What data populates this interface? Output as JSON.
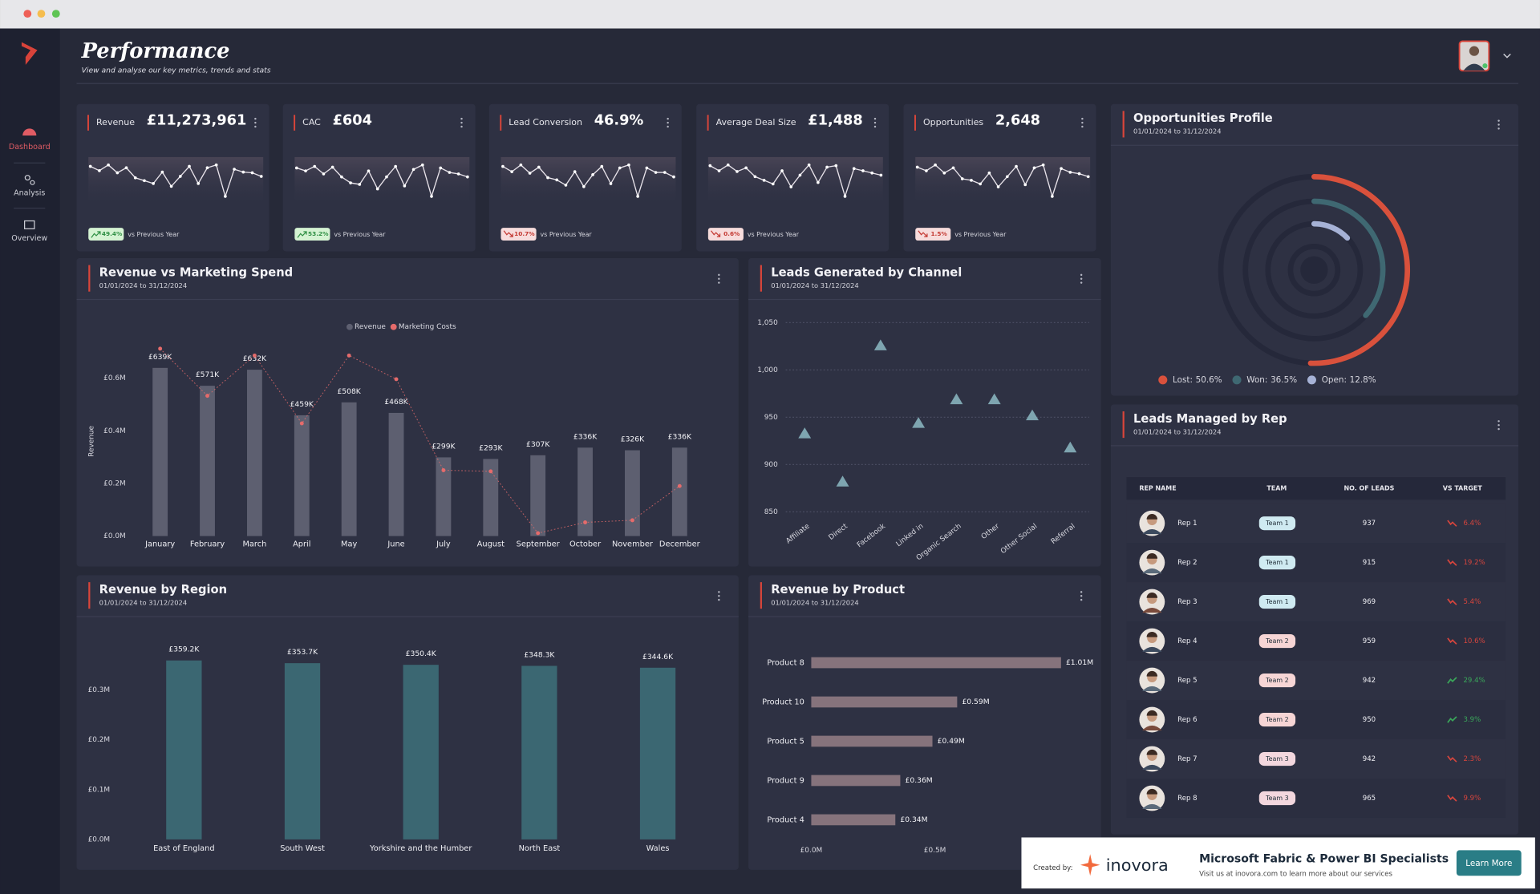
{
  "nav": {
    "items": [
      "Dashboard",
      "Analysis",
      "Overview"
    ]
  },
  "header": {
    "title": "Performance",
    "subtitle": "View and analyse our key metrics, trends and stats"
  },
  "kpis": [
    {
      "label": "Revenue",
      "value": "£11,273,961",
      "change": "49.4%",
      "direction": "up",
      "comparison": "vs Previous Year",
      "trend": [
        64,
        58,
        66,
        55,
        62,
        48,
        44,
        40,
        56,
        36,
        50,
        64,
        40,
        62,
        66,
        22,
        60,
        56,
        55,
        50
      ]
    },
    {
      "label": "CAC",
      "value": "£604",
      "change": "53.2%",
      "direction": "up",
      "comparison": "vs Previous Year",
      "trend": [
        62,
        58,
        64,
        54,
        63,
        50,
        42,
        40,
        58,
        34,
        50,
        64,
        38,
        60,
        66,
        24,
        62,
        56,
        54,
        50
      ]
    },
    {
      "label": "Lead Conversion",
      "value": "46.9%",
      "change": "10.7%",
      "direction": "down",
      "comparison": "vs Previous Year",
      "trend": [
        63,
        56,
        65,
        54,
        62,
        48,
        45,
        38,
        56,
        36,
        52,
        63,
        40,
        61,
        65,
        23,
        61,
        55,
        55,
        49
      ]
    },
    {
      "label": "Average Deal Size",
      "value": "£1,488",
      "change": "0.6%",
      "direction": "down",
      "comparison": "vs Previous Year",
      "trend": [
        64,
        57,
        65,
        56,
        61,
        49,
        44,
        39,
        57,
        35,
        51,
        65,
        41,
        62,
        64,
        22,
        60,
        57,
        54,
        51
      ]
    },
    {
      "label": "Opportunities",
      "value": "2,648",
      "change": "1.5%",
      "direction": "down",
      "comparison": "vs Previous Year",
      "trend": [
        63,
        58,
        66,
        55,
        62,
        47,
        45,
        40,
        55,
        36,
        50,
        64,
        39,
        62,
        66,
        23,
        61,
        56,
        54,
        50
      ]
    }
  ],
  "chart_data": [
    {
      "type": "combo",
      "title": "Revenue vs Marketing Spend",
      "subtitle": "01/01/2024 to 31/12/2024",
      "categories": [
        "January",
        "February",
        "March",
        "April",
        "May",
        "June",
        "July",
        "August",
        "September",
        "October",
        "November",
        "December"
      ],
      "series": [
        {
          "name": "Revenue",
          "type": "bar",
          "color": "#5d5f70",
          "values": [
            639000,
            571000,
            632000,
            459000,
            508000,
            468000,
            299000,
            293000,
            307000,
            336000,
            326000,
            336000
          ],
          "value_labels": [
            "£639K",
            "£571K",
            "£632K",
            "£459K",
            "£508K",
            "£468K",
            "£299K",
            "£293K",
            "£307K",
            "£336K",
            "£326K",
            "£336K"
          ]
        },
        {
          "name": "Marketing Costs",
          "type": "line",
          "color": "#e56b6b",
          "values": [
            712000,
            533000,
            686000,
            428000,
            686000,
            596000,
            250000,
            246000,
            11000,
            52000,
            60000,
            190000
          ]
        }
      ],
      "y_label": "Revenue",
      "ylim": [
        0,
        720000
      ],
      "yticks": [
        {
          "value": 0,
          "label": "£0.0M"
        },
        {
          "value": 200000,
          "label": "£0.2M"
        },
        {
          "value": 400000,
          "label": "£0.4M"
        },
        {
          "value": 600000,
          "label": "£0.6M"
        }
      ],
      "grid": false
    },
    {
      "type": "scatter",
      "title": "Leads Generated by Channel",
      "subtitle": "01/01/2024 to 31/12/2024",
      "categories": [
        "Affiliate",
        "Direct",
        "Facebook",
        "Linked in",
        "Organic Search",
        "Other",
        "Other Social",
        "Referral"
      ],
      "values": [
        933,
        882,
        1026,
        944,
        969,
        969,
        952,
        918
      ],
      "color": "#7ea5b0",
      "ylim": [
        840,
        1060
      ],
      "yticks": [
        850,
        900,
        950,
        {
          "value": 1000,
          "label": "1,000"
        },
        {
          "value": 1050,
          "label": "1,050"
        }
      ],
      "grid": true
    },
    {
      "type": "bar",
      "title": "Revenue by Region",
      "subtitle": "01/01/2024 to 31/12/2024",
      "categories": [
        "East of England",
        "South West",
        "Yorkshire and the Humber",
        "North East",
        "Wales"
      ],
      "values": [
        359200,
        353700,
        350400,
        348300,
        344600
      ],
      "value_labels": [
        "£359.2K",
        "£353.7K",
        "£350.4K",
        "£348.3K",
        "£344.6K"
      ],
      "color": "#3b6772",
      "ylim": [
        0,
        400000
      ],
      "yticks": [
        {
          "value": 0,
          "label": "£0.0M"
        },
        {
          "value": 100000,
          "label": "£0.1M"
        },
        {
          "value": 200000,
          "label": "£0.2M"
        },
        {
          "value": 300000,
          "label": "£0.3M"
        }
      ],
      "grid": false
    },
    {
      "type": "bar",
      "orientation": "horizontal",
      "title": "Revenue by Product",
      "subtitle": "01/01/2024 to 31/12/2024",
      "categories": [
        "Product 8",
        "Product 10",
        "Product 5",
        "Product 9",
        "Product 4"
      ],
      "values": [
        1010000,
        590000,
        490000,
        360000,
        340000
      ],
      "value_labels": [
        "£1.01M",
        "£0.59M",
        "£0.49M",
        "£0.36M",
        "£0.34M"
      ],
      "color": "#86737c",
      "xlim": [
        0,
        1100000
      ],
      "xticks": [
        {
          "value": 0,
          "label": "£0.0M"
        },
        {
          "value": 500000,
          "label": "£0.5M"
        }
      ],
      "grid": false
    },
    {
      "type": "radial",
      "title": "Opportunities Profile",
      "subtitle": "01/01/2024 to 31/12/2024",
      "categories": [
        "Lost:",
        "Won:",
        "Open:"
      ],
      "values": [
        50.6,
        36.5,
        12.8
      ],
      "value_labels": [
        "50.6%",
        "36.5%",
        "12.8%"
      ],
      "colors": [
        "#d9513c",
        "#3f6872",
        "#a6b2d6"
      ]
    }
  ],
  "table": {
    "title": "Leads Managed by Rep",
    "subtitle": "01/01/2024 to 31/12/2024",
    "columns": [
      "REP NAME",
      "TEAM",
      "NO. OF LEADS",
      "VS TARGET"
    ],
    "rows": [
      [
        "Rep 1",
        "Team 1",
        937,
        "6.4%"
      ],
      [
        "Rep 2",
        "Team 1",
        915,
        "19.2%"
      ],
      [
        "Rep 3",
        "Team 1",
        969,
        "5.4%"
      ],
      [
        "Rep 4",
        "Team 2",
        959,
        "10.6%"
      ],
      [
        "Rep 5",
        "Team 2",
        942,
        "29.4%"
      ],
      [
        "Rep 6",
        "Team 2",
        950,
        "3.9%"
      ],
      [
        "Rep 7",
        "Team 3",
        942,
        "2.3%"
      ],
      [
        "Rep 8",
        "Team 3",
        965,
        "9.9%"
      ]
    ],
    "status": [
      "down",
      "down",
      "down",
      "down",
      "up",
      "up",
      "down",
      "down"
    ]
  },
  "footer": {
    "created_by": "Created by:",
    "brand": "inovora",
    "headline": "Microsoft Fabric & Power BI Specialists",
    "tagline": "Visit us at inovora.com to learn more about our services",
    "button": "Learn More"
  }
}
